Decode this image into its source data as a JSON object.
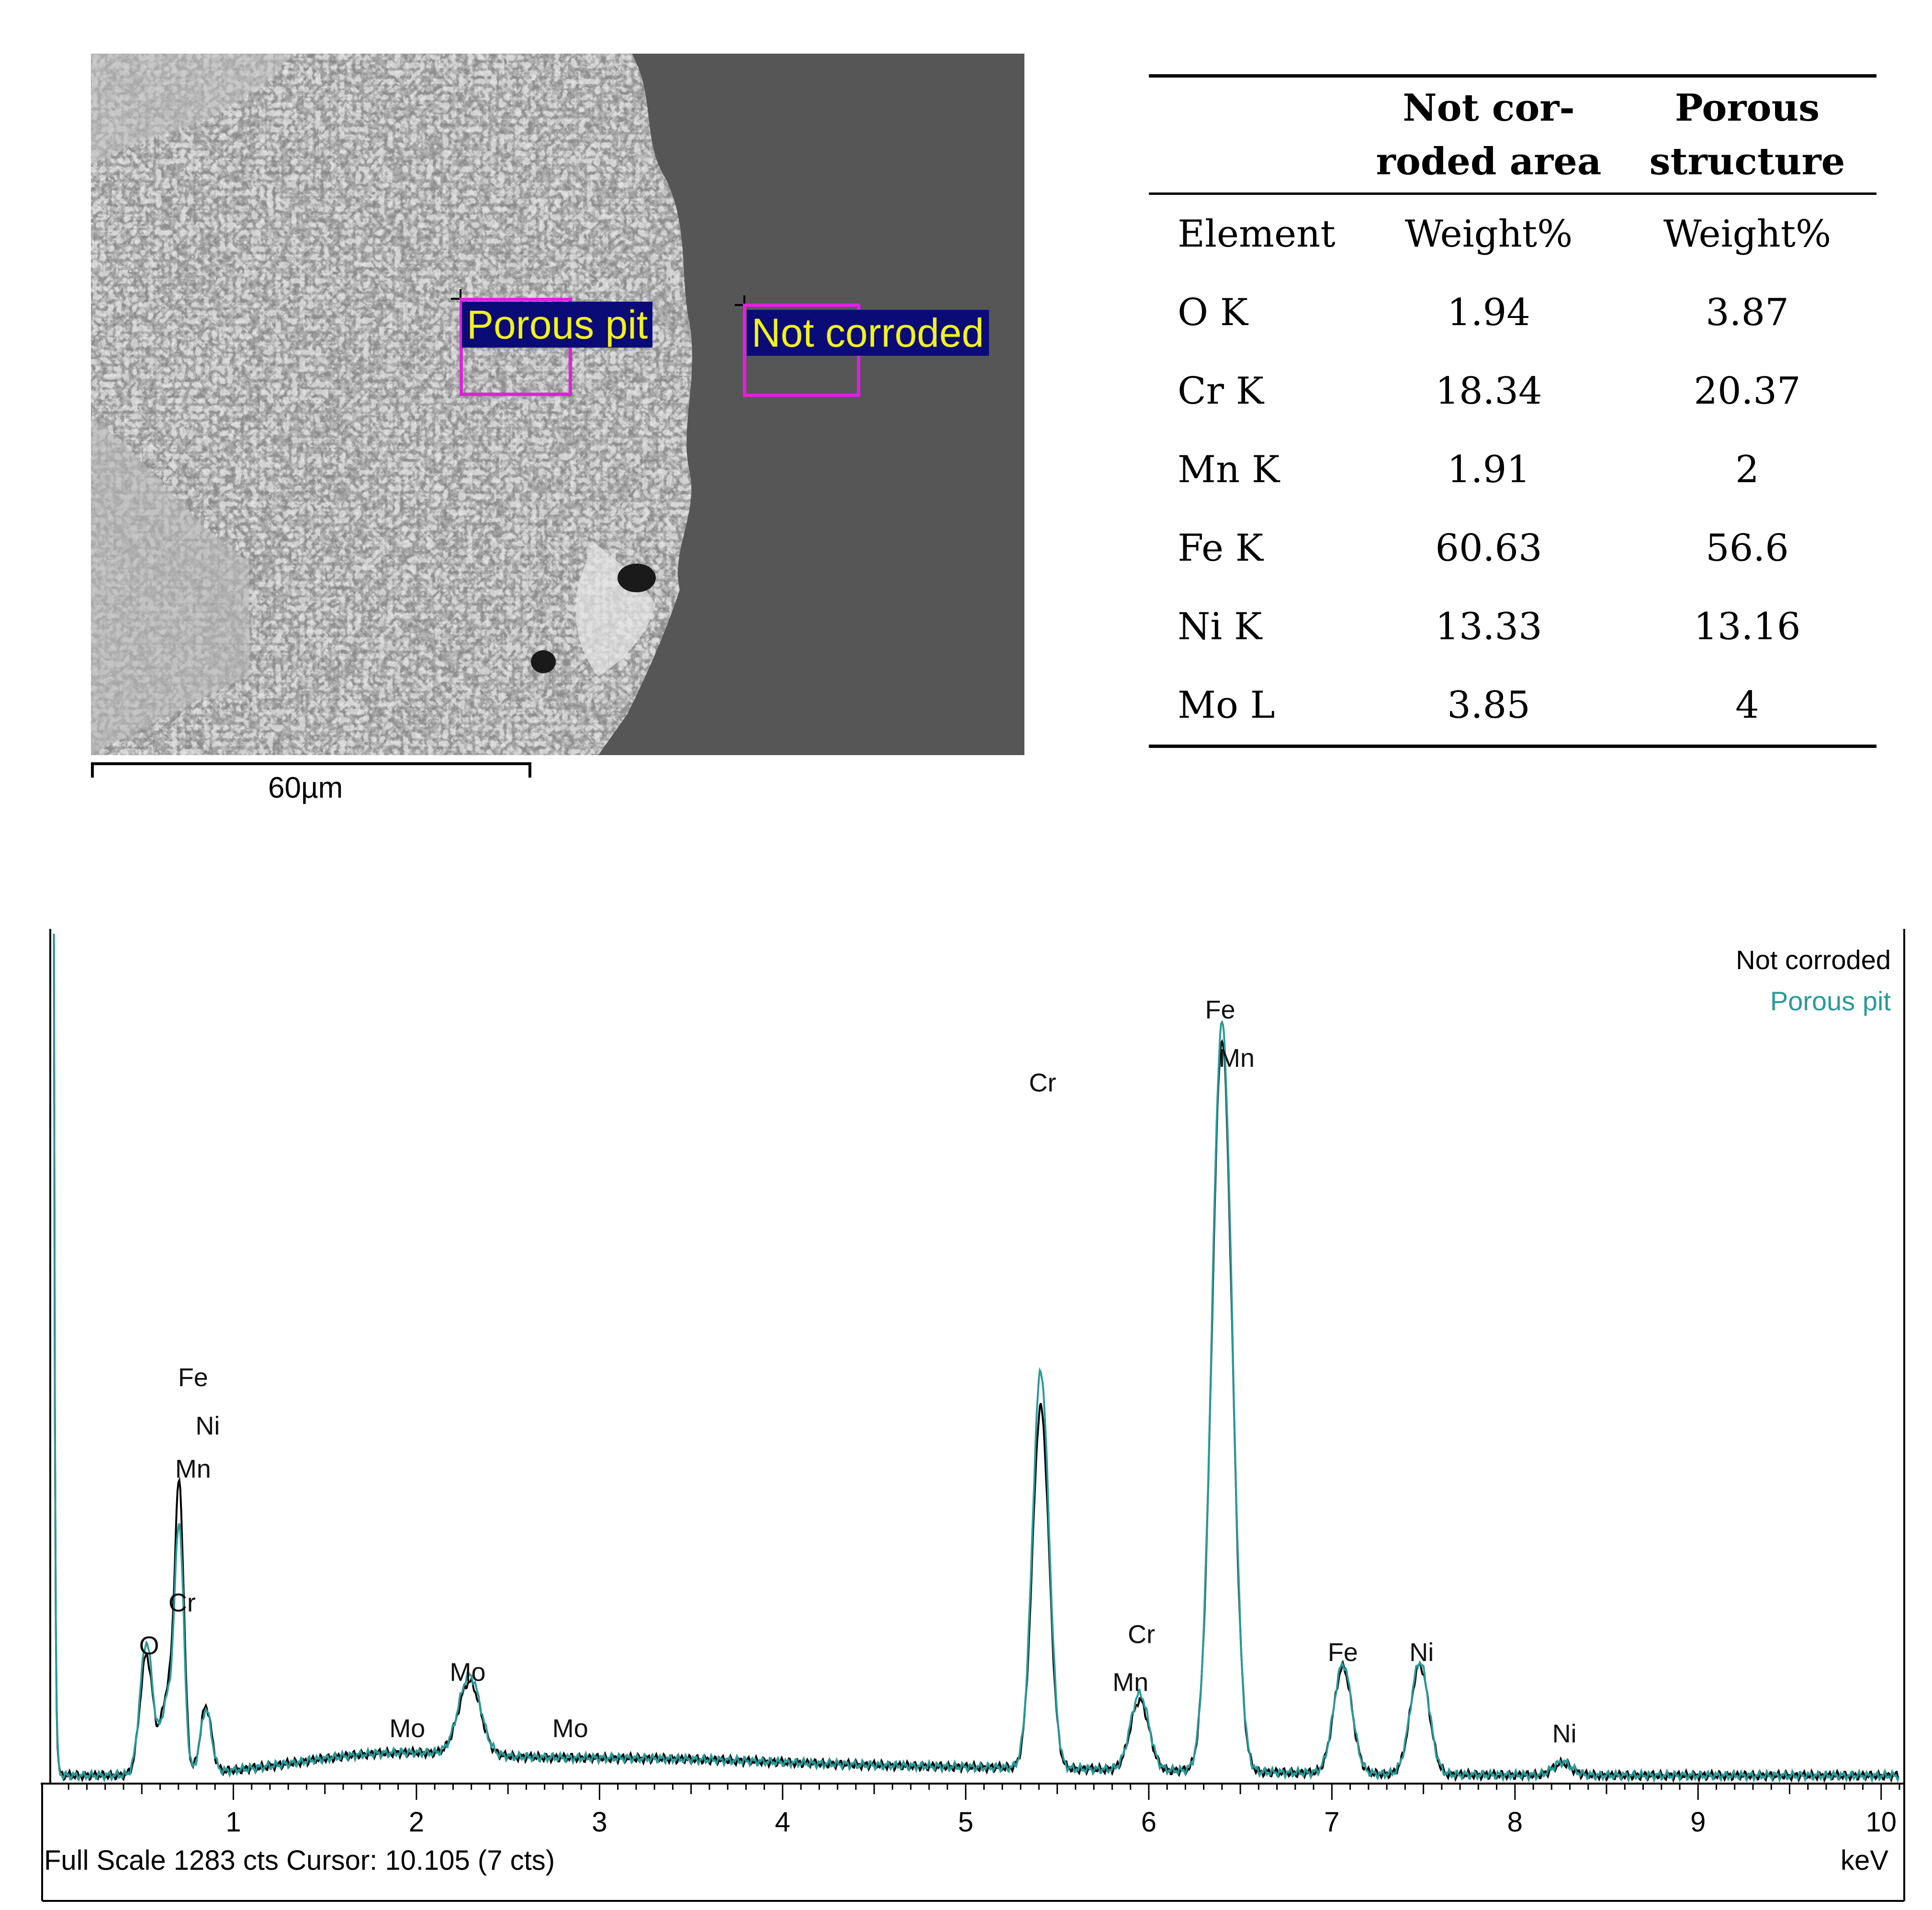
{
  "micrograph": {
    "regions": [
      {
        "label": "Porous pit"
      },
      {
        "label": "Not corroded"
      }
    ],
    "scale_bar": "60µm"
  },
  "table": {
    "headers": [
      "",
      "Not cor-\nroded area",
      "Porous\nstructure"
    ],
    "subheader": [
      "Element",
      "Weight%",
      "Weight%"
    ],
    "rows": [
      [
        "O K",
        "1.94",
        "3.87"
      ],
      [
        "Cr K",
        "18.34",
        "20.37"
      ],
      [
        "Mn K",
        "1.91",
        "2"
      ],
      [
        "Fe K",
        "60.63",
        "56.6"
      ],
      [
        "Ni K",
        "13.33",
        "13.16"
      ],
      [
        "Mo L",
        "3.85",
        "4"
      ]
    ]
  },
  "spectrum": {
    "status": "Full Scale 1283 cts Cursor: 10.105  (7 cts)",
    "unit": "keV",
    "legend": [
      "Not corroded",
      "Porous pit"
    ],
    "colors": {
      "not_corroded": "#000000",
      "porous_pit": "#2a9a9a"
    }
  },
  "chart_data": {
    "type": "line",
    "xlabel": "keV",
    "ylabel": "",
    "xlim": [
      0,
      10.1
    ],
    "ylim": [
      0,
      1283
    ],
    "x_ticks": [
      "1",
      "2",
      "3",
      "4",
      "5",
      "6",
      "7",
      "8",
      "9",
      "10"
    ],
    "series": [
      {
        "name": "Not corroded",
        "color": "#000000",
        "peaks": [
          {
            "x": 0.525,
            "y": 180,
            "w": 0.035
          },
          {
            "x": 0.64,
            "y": 120,
            "w": 0.035
          },
          {
            "x": 0.705,
            "y": 420,
            "w": 0.025
          },
          {
            "x": 0.85,
            "y": 100,
            "w": 0.03
          },
          {
            "x": 2.29,
            "y": 110,
            "w": 0.06
          },
          {
            "x": 5.41,
            "y": 545,
            "w": 0.045
          },
          {
            "x": 5.95,
            "y": 105,
            "w": 0.05
          },
          {
            "x": 6.4,
            "y": 1105,
            "w": 0.055
          },
          {
            "x": 7.06,
            "y": 160,
            "w": 0.05
          },
          {
            "x": 7.48,
            "y": 165,
            "w": 0.05
          },
          {
            "x": 8.26,
            "y": 18,
            "w": 0.05
          }
        ]
      },
      {
        "name": "Porous pit",
        "color": "#2a9a9a",
        "peaks": [
          {
            "x": 0.525,
            "y": 200,
            "w": 0.035
          },
          {
            "x": 0.64,
            "y": 110,
            "w": 0.035
          },
          {
            "x": 0.705,
            "y": 360,
            "w": 0.025
          },
          {
            "x": 0.85,
            "y": 95,
            "w": 0.03
          },
          {
            "x": 2.29,
            "y": 120,
            "w": 0.06
          },
          {
            "x": 5.41,
            "y": 600,
            "w": 0.045
          },
          {
            "x": 5.95,
            "y": 115,
            "w": 0.05
          },
          {
            "x": 6.4,
            "y": 1130,
            "w": 0.055
          },
          {
            "x": 7.06,
            "y": 165,
            "w": 0.05
          },
          {
            "x": 7.48,
            "y": 170,
            "w": 0.05
          },
          {
            "x": 8.26,
            "y": 20,
            "w": 0.05
          }
        ]
      }
    ],
    "annotations": [
      {
        "text": "Fe",
        "x": 0.78,
        "y": 600
      },
      {
        "text": "Ni",
        "x": 0.86,
        "y": 527
      },
      {
        "text": "Mn",
        "x": 0.78,
        "y": 462
      },
      {
        "text": "Cr",
        "x": 0.72,
        "y": 260
      },
      {
        "text": "O",
        "x": 0.54,
        "y": 195
      },
      {
        "text": "Mo",
        "x": 2.28,
        "y": 155
      },
      {
        "text": "Mo",
        "x": 1.95,
        "y": 70
      },
      {
        "text": "Mo",
        "x": 2.84,
        "y": 70
      },
      {
        "text": "Cr",
        "x": 5.42,
        "y": 1045
      },
      {
        "text": "Fe",
        "x": 6.39,
        "y": 1155
      },
      {
        "text": "Mn",
        "x": 6.48,
        "y": 1082
      },
      {
        "text": "Cr",
        "x": 5.96,
        "y": 212
      },
      {
        "text": "Mn",
        "x": 5.9,
        "y": 140
      },
      {
        "text": "Fe",
        "x": 7.06,
        "y": 185
      },
      {
        "text": "Ni",
        "x": 7.49,
        "y": 185
      },
      {
        "text": "Ni",
        "x": 8.27,
        "y": 62
      }
    ]
  }
}
